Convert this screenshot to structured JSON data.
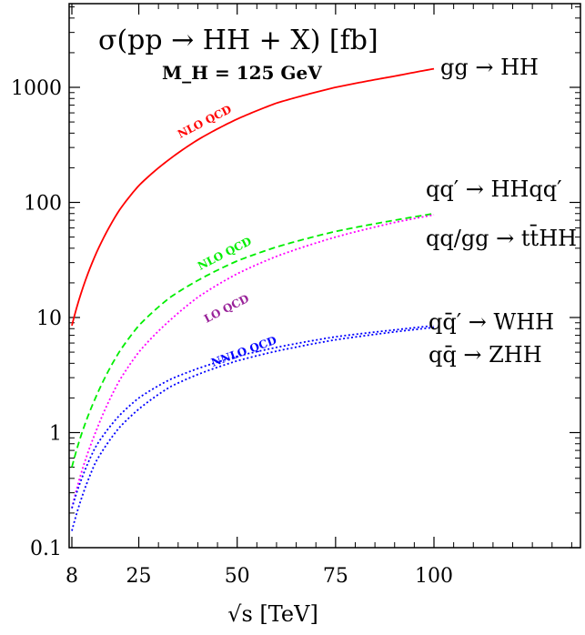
{
  "chart_data": {
    "type": "line",
    "title": "σ(pp → HH + X) [fb]",
    "subtitle": "M_H = 125 GeV",
    "xlabel": "√s [TeV]",
    "ylabel": "",
    "y_scale": "log",
    "xlim": [
      7,
      150
    ],
    "ylim": [
      0.1,
      5000
    ],
    "x_ticks": [
      "8",
      "25",
      "50",
      "75",
      "100"
    ],
    "x_tick_values": [
      8,
      25,
      50,
      75,
      100
    ],
    "y_ticks": [
      "0.1",
      "1",
      "10",
      "100",
      "1000"
    ],
    "y_tick_values": [
      0.1,
      1,
      10,
      100,
      1000
    ],
    "series": [
      {
        "name": "gg → HH",
        "label": "gg → HH",
        "order": "NLO QCD",
        "color": "#ff0000",
        "style": "solid",
        "x": [
          8,
          14,
          20,
          25,
          33,
          40,
          50,
          60,
          75,
          90,
          100
        ],
        "y": [
          8.5,
          35,
          85,
          140,
          240,
          350,
          530,
          730,
          1000,
          1250,
          1450
        ]
      },
      {
        "name": "qq′ → HHqq′",
        "label": "qq′ → HHqq′",
        "order": "NLO QCD",
        "color": "#00ee00",
        "style": "dashed",
        "x": [
          8,
          14,
          20,
          25,
          33,
          40,
          50,
          60,
          75,
          90,
          100
        ],
        "y": [
          0.5,
          2.0,
          5.0,
          8.5,
          15,
          21,
          31,
          41,
          56,
          70,
          80
        ]
      },
      {
        "name": "qq/gg → tt̄HH",
        "label": "qq/gg → tt̄HH",
        "order": "LO QCD",
        "color": "#ff00ff",
        "style": "dotted",
        "x": [
          8,
          14,
          20,
          25,
          33,
          40,
          50,
          60,
          75,
          90,
          100
        ],
        "y": [
          0.22,
          1.0,
          2.8,
          5.0,
          9.5,
          15,
          24,
          34,
          50,
          67,
          78
        ]
      },
      {
        "name": "qq̄′ → WHH",
        "label": "qq̄′ → WHH",
        "order": "NNLO QCD",
        "color": "#0000ff",
        "style": "dotted",
        "x": [
          8,
          14,
          20,
          25,
          33,
          40,
          50,
          60,
          75,
          90,
          100
        ],
        "y": [
          0.22,
          0.75,
          1.4,
          2.0,
          2.9,
          3.6,
          4.6,
          5.5,
          6.8,
          7.8,
          8.5
        ]
      },
      {
        "name": "qq̄ → ZHH",
        "label": "qq̄ → ZHH",
        "order": "NNLO QCD",
        "color": "#0000ff",
        "style": "dotted",
        "x": [
          8,
          14,
          20,
          25,
          33,
          40,
          50,
          60,
          75,
          90,
          100
        ],
        "y": [
          0.14,
          0.55,
          1.1,
          1.6,
          2.5,
          3.2,
          4.2,
          5.1,
          6.4,
          7.5,
          8.2
        ]
      }
    ],
    "grid": false,
    "legend": "none"
  }
}
